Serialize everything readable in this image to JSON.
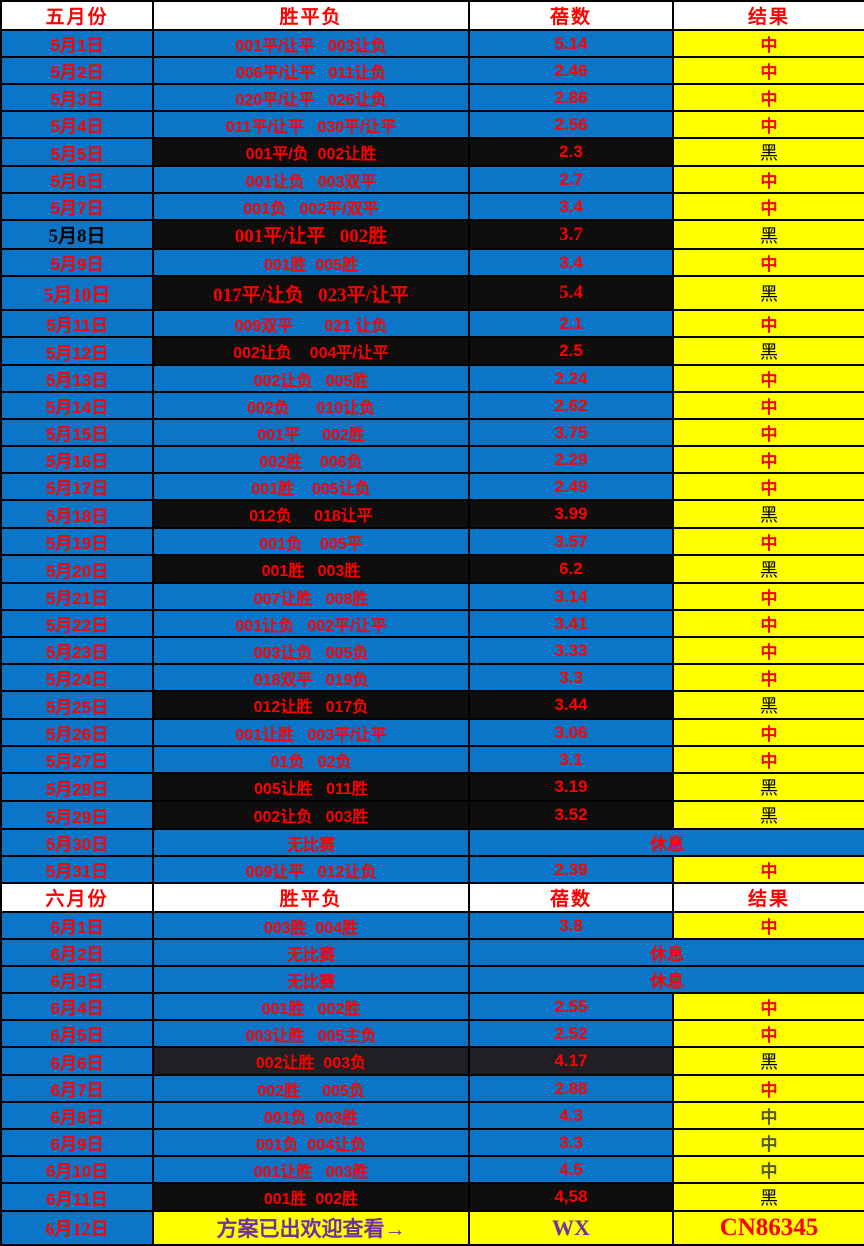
{
  "palette": {
    "blue": "#0b76c8",
    "yellow": "#ffff00",
    "red": "#ff0000",
    "black_row": "#0e0e0e",
    "charcoal_row": "#1f1f24",
    "purple": "#7030a0",
    "dark_result": "#565a1a"
  },
  "sections": [
    {
      "header": {
        "month": "五月份",
        "outcome": "胜平负",
        "odds": "蓓数",
        "result": "结果"
      },
      "rows": [
        {
          "date": "5月1日",
          "match": "001平/让平   003让负",
          "odds": "5.14",
          "result": "中",
          "type": "hit"
        },
        {
          "date": "5月2日",
          "match": "006平/让平   011让负",
          "odds": "2.46",
          "result": "中",
          "type": "hit"
        },
        {
          "date": "5月3日",
          "match": "020平/让平   026让负",
          "odds": "2.86",
          "result": "中",
          "type": "hit"
        },
        {
          "date": "5月4日",
          "match": "011平/让平   030平/让平",
          "odds": "2.56",
          "result": "中",
          "type": "hit"
        },
        {
          "date": "5月5日",
          "match": "001平/负  002让胜",
          "odds": "2.3",
          "result": "黑",
          "type": "black"
        },
        {
          "date": "5月6日",
          "match": "001让负   003双平",
          "odds": "2.7",
          "result": "中",
          "type": "hit"
        },
        {
          "date": "5月7日",
          "match": "001负   002平/双平",
          "odds": "3.4",
          "result": "中",
          "type": "hit"
        },
        {
          "date": "5月8日",
          "match": "001平/让平   002胜",
          "odds": "3.7",
          "result": "黑",
          "type": "black",
          "serif": true,
          "dateBlack": true
        },
        {
          "date": "5月9日",
          "match": "001胜  005胜",
          "odds": "3.4",
          "result": "中",
          "type": "hit"
        },
        {
          "date": "5月10日",
          "match": "017平/让负   023平/让平",
          "odds": "5.4",
          "result": "黑",
          "type": "black",
          "serif": true,
          "tall": true
        },
        {
          "date": "5月11日",
          "match": "009双平       021 让负",
          "odds": "2.1",
          "result": "中",
          "type": "hit"
        },
        {
          "date": "5月12日",
          "match": "002让负    004平/让平",
          "odds": "2.5",
          "result": "黑",
          "type": "black"
        },
        {
          "date": "5月13日",
          "match": "002让负   005胜",
          "odds": "2.24",
          "result": "中",
          "type": "hit"
        },
        {
          "date": "5月14日",
          "match": "002负      010让负",
          "odds": "2.62",
          "result": "中",
          "type": "hit"
        },
        {
          "date": "5月15日",
          "match": "001平     002胜",
          "odds": "3.75",
          "result": "中",
          "type": "hit"
        },
        {
          "date": "5月16日",
          "match": "002胜    006负",
          "odds": "2.29",
          "result": "中",
          "type": "hit"
        },
        {
          "date": "5月17日",
          "match": "001胜    005让负",
          "odds": "2.49",
          "result": "中",
          "type": "hit"
        },
        {
          "date": "5月18日",
          "match": "012负     018让平",
          "odds": "3.99",
          "result": "黑",
          "type": "black"
        },
        {
          "date": "5月19日",
          "match": "001负    005平",
          "odds": "3.57",
          "result": "中",
          "type": "hit"
        },
        {
          "date": "5月20日",
          "match": "001胜   003胜",
          "odds": "6.2",
          "result": "黑",
          "type": "black"
        },
        {
          "date": "5月21日",
          "match": "007让胜   008胜",
          "odds": "3.14",
          "result": "中",
          "type": "hit"
        },
        {
          "date": "5月22日",
          "match": "001让负   002平/让平",
          "odds": "3.41",
          "result": "中",
          "type": "hit"
        },
        {
          "date": "5月23日",
          "match": "003让负   005负",
          "odds": "3.33",
          "result": "中",
          "type": "hit"
        },
        {
          "date": "5月24日",
          "match": "018双平   019负",
          "odds": "3.3",
          "result": "中",
          "type": "hit"
        },
        {
          "date": "5月25日",
          "match": "012让胜   017负",
          "odds": "3.44",
          "result": "黑",
          "type": "black"
        },
        {
          "date": "5月26日",
          "match": "001让胜   003平/让平",
          "odds": "3.06",
          "result": "中",
          "type": "hit"
        },
        {
          "date": "5月27日",
          "match": "01负   02负",
          "odds": "3.1",
          "result": "中",
          "type": "hit"
        },
        {
          "date": "5月28日",
          "match": "005让胜   011胜",
          "odds": "3.19",
          "result": "黑",
          "type": "black"
        },
        {
          "date": "5月29日",
          "match": "002让负   003胜",
          "odds": "3.52",
          "result": "黑",
          "type": "black"
        },
        {
          "date": "5月30日",
          "match": "无比赛",
          "rest": "休息",
          "type": "rest"
        },
        {
          "date": "5月31日",
          "match": "009让平   012让负",
          "odds": "2.39",
          "result": "中",
          "type": "hit"
        }
      ]
    },
    {
      "header": {
        "month": "六月份",
        "outcome": "胜平负",
        "odds": "蓓数",
        "result": "结果"
      },
      "rows": [
        {
          "date": "6月1日",
          "match": "003胜  004胜",
          "odds": "3.8",
          "result": "中",
          "type": "hit"
        },
        {
          "date": "6月2日",
          "match": "无比赛",
          "rest": "休息",
          "type": "rest"
        },
        {
          "date": "6月3日",
          "match": "无比赛",
          "rest": "休息",
          "type": "rest"
        },
        {
          "date": "6月4日",
          "match": "001胜   002胜",
          "odds": "2.55",
          "result": "中",
          "type": "hit"
        },
        {
          "date": "6月5日",
          "match": "003让胜   005主负",
          "odds": "2.52",
          "result": "中",
          "type": "hit"
        },
        {
          "date": "6月6日",
          "match": "002让胜  003负",
          "odds": "4.17",
          "result": "黑",
          "type": "black",
          "charcoal": true
        },
        {
          "date": "6月7日",
          "match": "002胜     005负",
          "odds": "2.88",
          "result": "中",
          "type": "hit"
        },
        {
          "date": "6月8日",
          "match": "001负  003胜",
          "odds": "4.3",
          "result": "中",
          "type": "hit",
          "darkResult": true
        },
        {
          "date": "6月9日",
          "match": "001负  004让负",
          "odds": "3.3",
          "result": "中",
          "type": "hit",
          "darkResult": true
        },
        {
          "date": "6月10日",
          "match": "001让胜   003胜",
          "odds": "4.5",
          "result": "中",
          "type": "hit",
          "darkResult": true
        },
        {
          "date": "6月11日",
          "match": "001胜  002胜",
          "odds": "4,58",
          "result": "黑",
          "type": "black"
        },
        {
          "date": "6月12日",
          "match": "方案已出欢迎查看→",
          "odds": "WX",
          "result": "CN86345",
          "type": "promo",
          "tall": true
        }
      ]
    }
  ]
}
